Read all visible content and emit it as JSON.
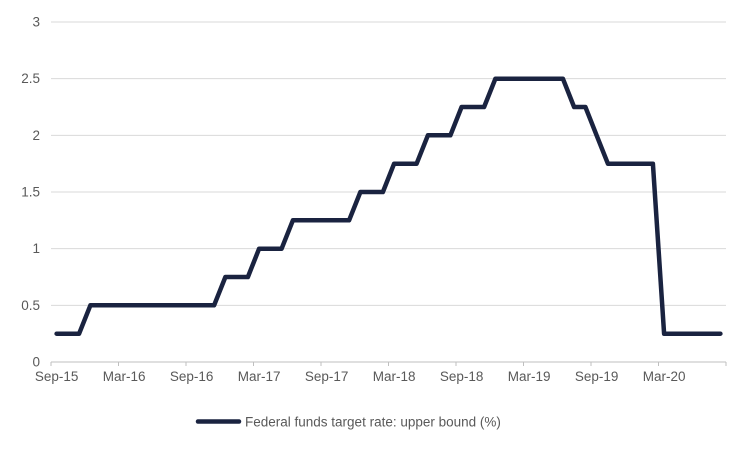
{
  "chart": {
    "legend_label": "Federal funds target rate: upper bound (%)",
    "colors": {
      "line": "#1A2340",
      "grid": "#D9D9D9",
      "axis": "#BFBFBF",
      "tick": "#BFBFBF",
      "label_text": "#595959",
      "background": "#FFFFFF"
    }
  },
  "chart_data": {
    "type": "line",
    "title": "",
    "xlabel": "",
    "ylabel": "",
    "series_name": "Federal funds target rate: upper bound (%)",
    "x": [
      "Sep-15",
      "Oct-15",
      "Nov-15",
      "Dec-15",
      "Jan-16",
      "Feb-16",
      "Mar-16",
      "Apr-16",
      "May-16",
      "Jun-16",
      "Jul-16",
      "Aug-16",
      "Sep-16",
      "Oct-16",
      "Nov-16",
      "Dec-16",
      "Jan-17",
      "Feb-17",
      "Mar-17",
      "Apr-17",
      "May-17",
      "Jun-17",
      "Jul-17",
      "Aug-17",
      "Sep-17",
      "Oct-17",
      "Nov-17",
      "Dec-17",
      "Jan-18",
      "Feb-18",
      "Mar-18",
      "Apr-18",
      "May-18",
      "Jun-18",
      "Jul-18",
      "Aug-18",
      "Sep-18",
      "Oct-18",
      "Nov-18",
      "Dec-18",
      "Jan-19",
      "Feb-19",
      "Mar-19",
      "Apr-19",
      "May-19",
      "Jun-19",
      "Jul-19",
      "Aug-19",
      "Sep-19",
      "Oct-19",
      "Nov-19",
      "Dec-19",
      "Jan-20",
      "Feb-20",
      "Mar-20",
      "Apr-20",
      "May-20",
      "Jun-20",
      "Jul-20",
      "Aug-20"
    ],
    "values": [
      0.25,
      0.25,
      0.25,
      0.5,
      0.5,
      0.5,
      0.5,
      0.5,
      0.5,
      0.5,
      0.5,
      0.5,
      0.5,
      0.5,
      0.5,
      0.75,
      0.75,
      0.75,
      1.0,
      1.0,
      1.0,
      1.25,
      1.25,
      1.25,
      1.25,
      1.25,
      1.25,
      1.5,
      1.5,
      1.5,
      1.75,
      1.75,
      1.75,
      2.0,
      2.0,
      2.0,
      2.25,
      2.25,
      2.25,
      2.5,
      2.5,
      2.5,
      2.5,
      2.5,
      2.5,
      2.5,
      2.25,
      2.25,
      2.0,
      1.75,
      1.75,
      1.75,
      1.75,
      1.75,
      0.25,
      0.25,
      0.25,
      0.25,
      0.25,
      0.25
    ],
    "x_tick_labels": [
      "Sep-15",
      "Mar-16",
      "Sep-16",
      "Mar-17",
      "Sep-17",
      "Mar-18",
      "Sep-18",
      "Mar-19",
      "Sep-19",
      "Mar-20"
    ],
    "x_tick_interval_months": 6,
    "y_ticks": [
      "3",
      "2.5",
      "2",
      "1.5",
      "1",
      "0.5",
      "0"
    ],
    "y_tick_values": [
      3,
      2.5,
      2,
      1.5,
      1,
      0.5,
      0
    ],
    "ylim": [
      0,
      3
    ],
    "grid": "horizontal",
    "legend": [
      "Federal funds target rate: upper bound (%)"
    ],
    "legend_position": "bottom-center"
  }
}
